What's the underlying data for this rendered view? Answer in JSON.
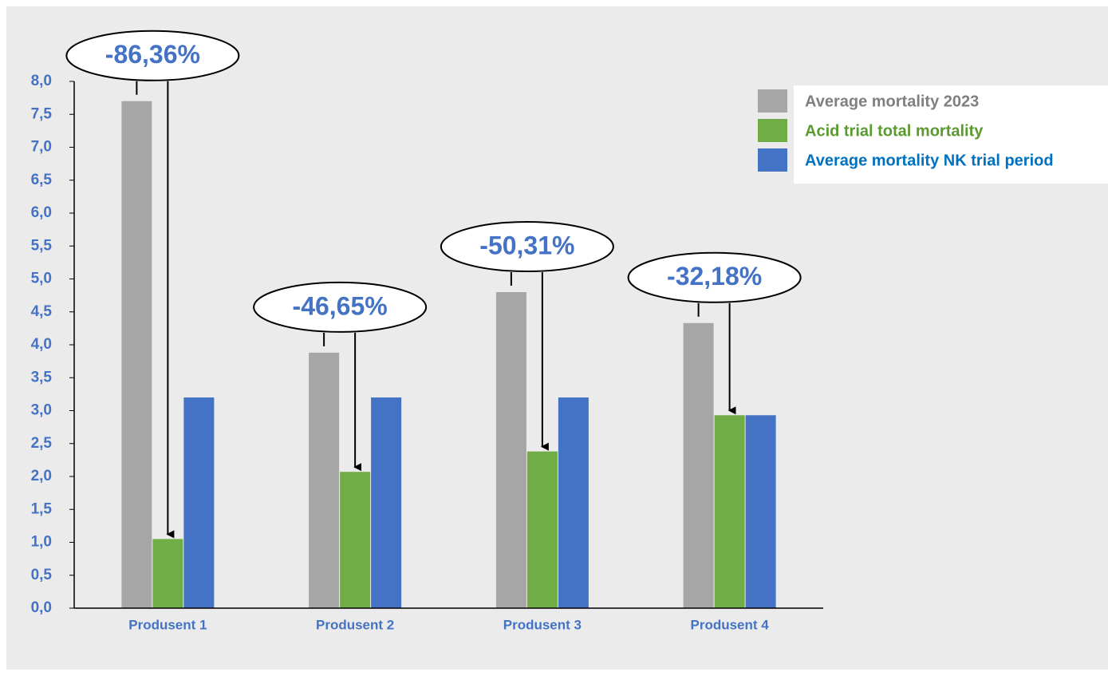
{
  "chart_data": {
    "type": "bar",
    "categories": [
      "Produsent 1",
      "Produsent 2",
      "Produsent 3",
      "Produsent 4"
    ],
    "series": [
      {
        "name": "Average mortality 2023",
        "color": "#a6a6a6",
        "text_color": "#7f7f7f",
        "values": [
          7.7,
          3.88,
          4.8,
          4.33
        ]
      },
      {
        "name": "Acid trial total mortality",
        "color": "#70ad47",
        "text_color": "#5b9a2e",
        "values": [
          1.05,
          2.07,
          2.38,
          2.93
        ]
      },
      {
        "name": "Average mortality NK trial period",
        "color": "#4472c4",
        "text_color": "#0070c0",
        "values": [
          3.2,
          3.2,
          3.2,
          2.93
        ]
      }
    ],
    "annotations": [
      "-86,36%",
      "-46,65%",
      "-50,31%",
      "-32,18%"
    ],
    "ylim": [
      0,
      8
    ],
    "yticks": [
      {
        "value": 0,
        "label": "0,0"
      },
      {
        "value": 0.5,
        "label": "0,5"
      },
      {
        "value": 1,
        "label": "1,0"
      },
      {
        "value": 1.5,
        "label": "1,5"
      },
      {
        "value": 2,
        "label": "2,0"
      },
      {
        "value": 2.5,
        "label": "2,5"
      },
      {
        "value": 3,
        "label": "3,0"
      },
      {
        "value": 3.5,
        "label": "3,5"
      },
      {
        "value": 4,
        "label": "4,0"
      },
      {
        "value": 4.5,
        "label": "4,5"
      },
      {
        "value": 5,
        "label": "5,0"
      },
      {
        "value": 5.5,
        "label": "5,5"
      },
      {
        "value": 6,
        "label": "6,0"
      },
      {
        "value": 6.5,
        "label": "6,5"
      },
      {
        "value": 7,
        "label": "7,0"
      },
      {
        "value": 7.5,
        "label": "7,5"
      },
      {
        "value": 8,
        "label": "8,0"
      }
    ],
    "grid": false,
    "legend": "top-right"
  }
}
